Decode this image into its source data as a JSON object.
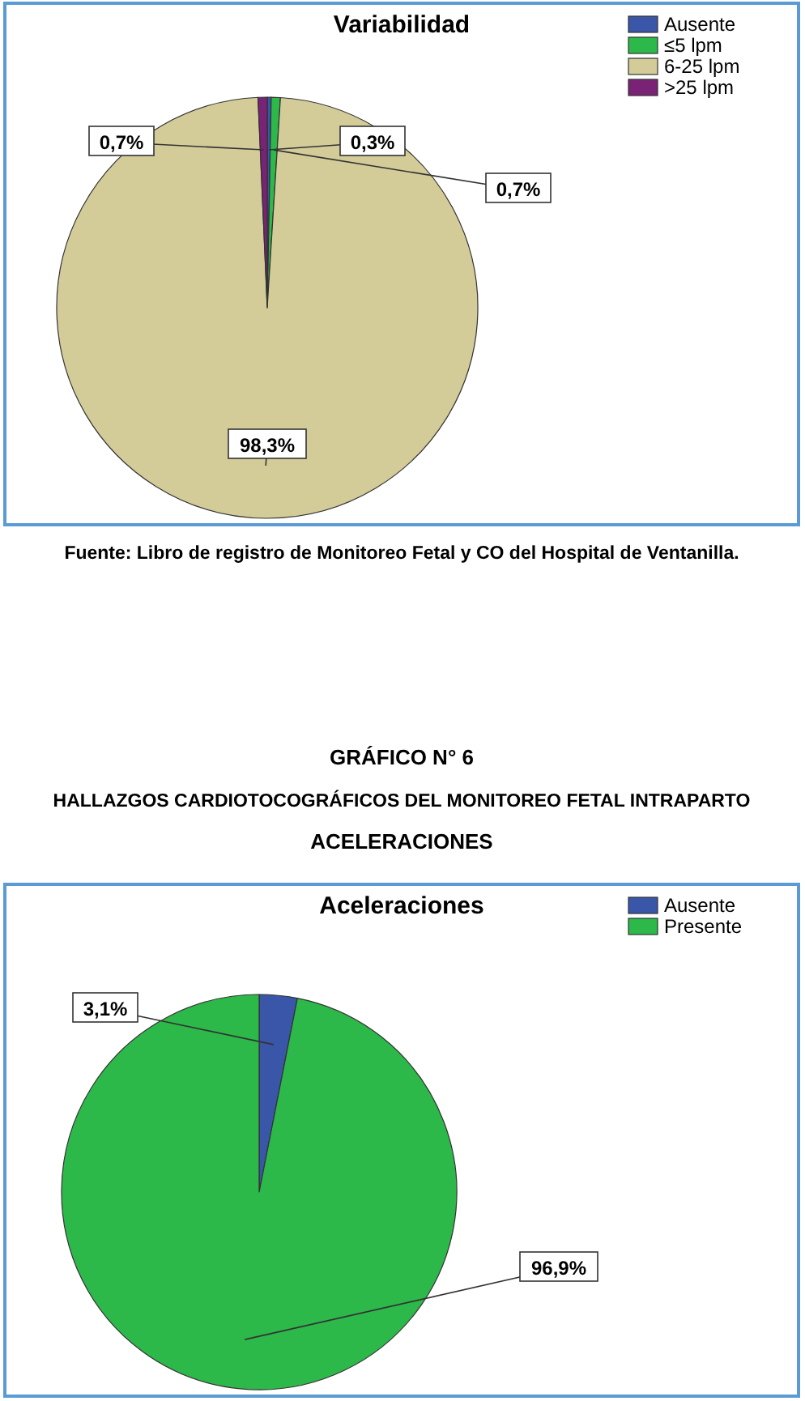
{
  "chart_data": [
    {
      "type": "pie",
      "title": "Variabilidad",
      "categories": [
        "Ausente",
        "≤5 lpm",
        "6-25 lpm",
        ">25 lpm"
      ],
      "values": [
        0.3,
        0.7,
        98.3,
        0.7
      ],
      "colors": [
        "#3a56a8",
        "#2db84a",
        "#d3cc99",
        "#7a2275"
      ],
      "value_labels": [
        "0,3%",
        "0,7%",
        "98,3%",
        "0,7%"
      ],
      "legend": "top right",
      "annotations": [
        "Fuente: Libro de registro de Monitoreo Fetal y CO del Hospital de Ventanilla."
      ]
    },
    {
      "type": "pie",
      "title": "Aceleraciones",
      "subtitle": "GRÁFICO N° 6\nHALLAZGOS CARDIOTOCOGRÁFICOS DEL MONITOREO FETAL INTRAPARTO\nACELERACIONES",
      "categories": [
        "Ausente",
        "Presente"
      ],
      "values": [
        3.1,
        96.9
      ],
      "colors": [
        "#3a56a8",
        "#2db84a"
      ],
      "value_labels": [
        "3,1%",
        "96,9%"
      ],
      "legend": "top right"
    }
  ]
}
